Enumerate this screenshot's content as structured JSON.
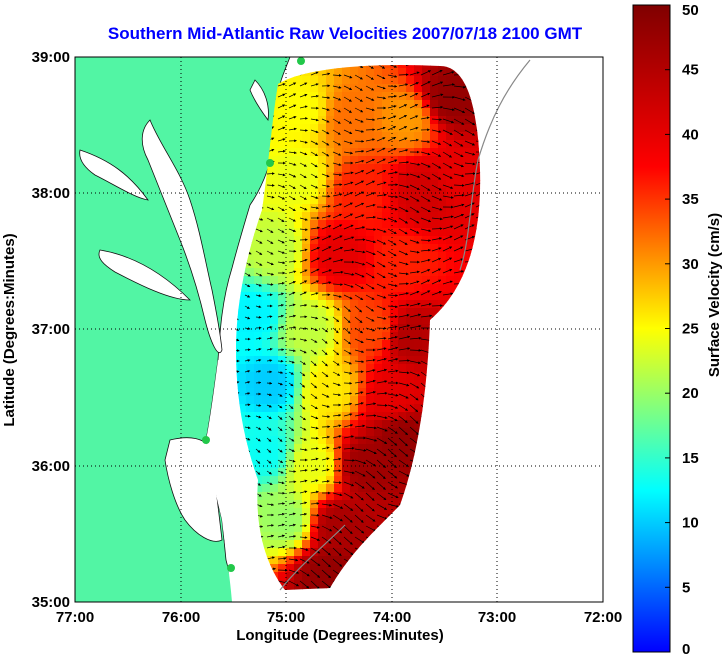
{
  "chart_data": {
    "type": "heatmap",
    "title": "Southern Mid-Atlantic Raw Velocities 2007/07/18 2100 GMT",
    "xlabel": "Longitude (Degrees:Minutes)",
    "ylabel": "Latitude (Degrees:Minutes)",
    "x_ticks": [
      "77:00",
      "76:00",
      "75:00",
      "74:00",
      "73:00",
      "72:00"
    ],
    "y_ticks": [
      "39:00",
      "38:00",
      "37:00",
      "36:00",
      "35:00"
    ],
    "xlim": [
      -77,
      -72
    ],
    "ylim": [
      35,
      39
    ],
    "grid": true,
    "colorbar": {
      "label": "Surface Velocity (cm/s)",
      "ticks": [
        "0",
        "5",
        "10",
        "15",
        "20",
        "25",
        "30",
        "35",
        "40",
        "45",
        "50"
      ],
      "range": [
        0,
        50
      ],
      "colormap": "jet"
    },
    "velocity_regions": [
      {
        "lon": -74.85,
        "lat": 38.6,
        "speed": 25
      },
      {
        "lon": -74.4,
        "lat": 38.55,
        "speed": 32
      },
      {
        "lon": -73.85,
        "lat": 38.55,
        "speed": 30
      },
      {
        "lon": -73.45,
        "lat": 38.7,
        "speed": 48
      },
      {
        "lon": -74.9,
        "lat": 38.1,
        "speed": 24
      },
      {
        "lon": -74.3,
        "lat": 38.0,
        "speed": 36
      },
      {
        "lon": -73.7,
        "lat": 38.0,
        "speed": 42
      },
      {
        "lon": -73.35,
        "lat": 38.1,
        "speed": 40
      },
      {
        "lon": -75.1,
        "lat": 37.6,
        "speed": 22
      },
      {
        "lon": -74.5,
        "lat": 37.55,
        "speed": 40
      },
      {
        "lon": -73.9,
        "lat": 37.5,
        "speed": 36
      },
      {
        "lon": -75.3,
        "lat": 37.1,
        "speed": 12
      },
      {
        "lon": -74.8,
        "lat": 37.0,
        "speed": 22
      },
      {
        "lon": -74.15,
        "lat": 37.0,
        "speed": 34
      },
      {
        "lon": -73.85,
        "lat": 36.95,
        "speed": 45
      },
      {
        "lon": -75.15,
        "lat": 36.6,
        "speed": 10
      },
      {
        "lon": -74.6,
        "lat": 36.55,
        "speed": 26
      },
      {
        "lon": -74.0,
        "lat": 36.5,
        "speed": 40
      },
      {
        "lon": -73.9,
        "lat": 36.2,
        "speed": 48
      },
      {
        "lon": -75.2,
        "lat": 36.1,
        "speed": 13
      },
      {
        "lon": -74.75,
        "lat": 36.0,
        "speed": 24
      },
      {
        "lon": -74.25,
        "lat": 36.0,
        "speed": 47
      },
      {
        "lon": -75.0,
        "lat": 35.6,
        "speed": 20
      },
      {
        "lon": -74.5,
        "lat": 35.55,
        "speed": 46
      },
      {
        "lon": -74.6,
        "lat": 35.2,
        "speed": 48
      }
    ]
  }
}
